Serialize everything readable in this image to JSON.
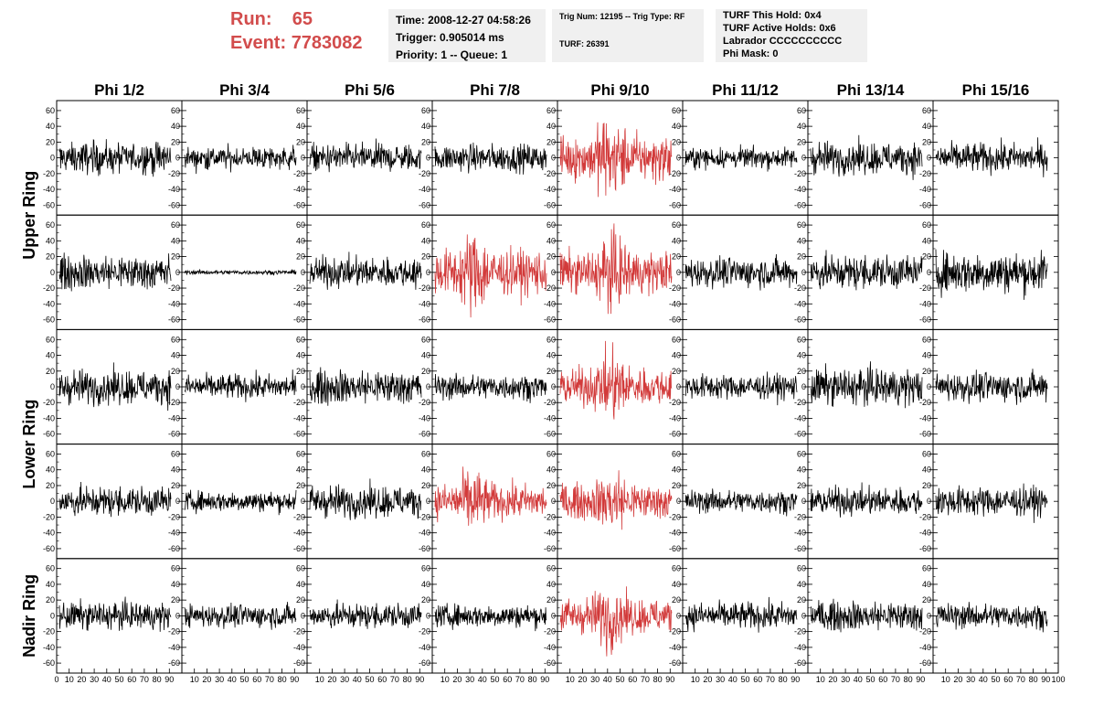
{
  "header": {
    "run_label": "Run:",
    "run_value": "65",
    "event_label": "Event:",
    "event_value": "7783082"
  },
  "info_panels": {
    "time": "Time: 2008-12-27 04:58:26",
    "trigger": "Trigger: 0.905014 ms",
    "priority": "Priority: 1 -- Queue: 1",
    "trig_num": "Trig Num: 12195 -- Trig Type: RF",
    "turf": "TURF: 26391",
    "turf_this_hold": "TURF This Hold: 0x4",
    "turf_active_holds": "TURF Active Holds: 0x6",
    "labrador": "Labrador CCCCCCCCCC",
    "phi_mask": "Phi Mask: 0"
  },
  "colors": {
    "triggered": "#d23a3a",
    "normal": "#000000",
    "header_red": "#d24c4c",
    "panel_bg": "#f0f0f0"
  },
  "chart_data": {
    "type": "line",
    "columns": [
      "Phi 1/2",
      "Phi 3/4",
      "Phi 5/6",
      "Phi 7/8",
      "Phi 9/10",
      "Phi 11/12",
      "Phi 13/14",
      "Phi 15/16"
    ],
    "ring_labels": [
      "Upper Ring",
      "Lower Ring",
      "Nadir Ring"
    ],
    "rows": 5,
    "row_ring_span": [
      [
        0,
        1
      ],
      [
        2,
        3
      ],
      [
        4,
        4
      ]
    ],
    "ylim": [
      -68,
      68
    ],
    "y_ticks": [
      -60,
      -40,
      -20,
      0,
      20,
      40,
      60
    ],
    "xlim": [
      0,
      100
    ],
    "x_ticks": [
      0,
      10,
      20,
      30,
      40,
      50,
      60,
      70,
      80,
      90,
      100
    ],
    "x_tick_labels": [
      "0",
      "10",
      "20",
      "30",
      "40",
      "50",
      "60",
      "70",
      "80",
      "90",
      "100"
    ],
    "samples_per_trace": 260,
    "traces": [
      [
        {
          "amp": 14,
          "hl": false
        },
        {
          "amp": 10,
          "hl": false
        },
        {
          "amp": 12,
          "hl": false
        },
        {
          "amp": 12,
          "hl": false
        },
        {
          "amp": 22,
          "hl": true
        },
        {
          "amp": 9,
          "hl": false
        },
        {
          "amp": 14,
          "hl": false
        },
        {
          "amp": 13,
          "hl": false
        }
      ],
      [
        {
          "amp": 15,
          "hl": false
        },
        {
          "amp": 2,
          "hl": false
        },
        {
          "amp": 13,
          "hl": false
        },
        {
          "amp": 22,
          "hl": true
        },
        {
          "amp": 20,
          "hl": true
        },
        {
          "amp": 13,
          "hl": false
        },
        {
          "amp": 15,
          "hl": false
        },
        {
          "amp": 18,
          "hl": false
        }
      ],
      [
        {
          "amp": 15,
          "hl": false
        },
        {
          "amp": 11,
          "hl": false
        },
        {
          "amp": 15,
          "hl": false
        },
        {
          "amp": 11,
          "hl": false
        },
        {
          "amp": 18,
          "hl": true
        },
        {
          "amp": 11,
          "hl": false
        },
        {
          "amp": 16,
          "hl": false
        },
        {
          "amp": 13,
          "hl": false
        }
      ],
      [
        {
          "amp": 13,
          "hl": false
        },
        {
          "amp": 9,
          "hl": false
        },
        {
          "amp": 14,
          "hl": false
        },
        {
          "amp": 17,
          "hl": true
        },
        {
          "amp": 17,
          "hl": true
        },
        {
          "amp": 10,
          "hl": false
        },
        {
          "amp": 12,
          "hl": false
        },
        {
          "amp": 13,
          "hl": false
        }
      ],
      [
        {
          "amp": 12,
          "hl": false
        },
        {
          "amp": 10,
          "hl": false
        },
        {
          "amp": 11,
          "hl": false
        },
        {
          "amp": 10,
          "hl": false
        },
        {
          "amp": 17,
          "hl": true
        },
        {
          "amp": 12,
          "hl": false
        },
        {
          "amp": 13,
          "hl": false
        },
        {
          "amp": 11,
          "hl": false
        }
      ]
    ]
  }
}
